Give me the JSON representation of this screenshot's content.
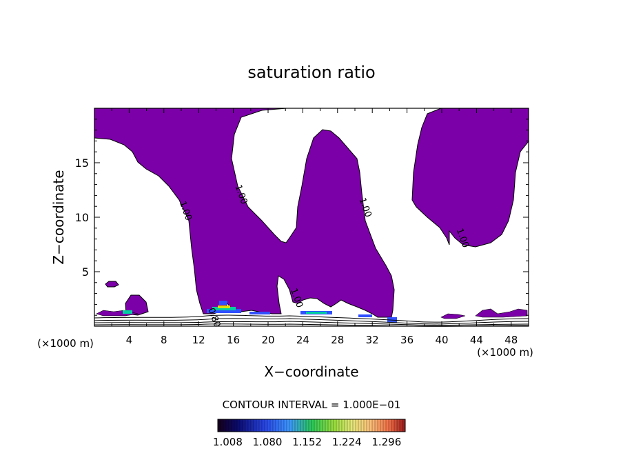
{
  "chart_data": {
    "type": "contour",
    "title": "saturation ratio",
    "xlabel": "X−coordinate",
    "ylabel": "Z−coordinate",
    "x_unit": "(×1000 m)",
    "z_unit": "(×1000 m)",
    "xlim": [
      0,
      50
    ],
    "ylim": [
      0,
      20
    ],
    "x_ticks": [
      4,
      8,
      12,
      16,
      20,
      24,
      28,
      32,
      36,
      40,
      44,
      48
    ],
    "y_ticks": [
      5,
      10,
      15
    ],
    "contour_labels": [
      {
        "text": "1.00",
        "x": 10.2,
        "z": 10.5
      },
      {
        "text": "1.00",
        "x": 16.6,
        "z": 12.0
      },
      {
        "text": "1.00",
        "x": 30.9,
        "z": 10.8
      },
      {
        "text": "1.00",
        "x": 42.1,
        "z": 8.0
      },
      {
        "text": "1.00",
        "x": 23.0,
        "z": 2.5
      },
      {
        "text": "0.80",
        "x": 13.5,
        "z": 0.7
      }
    ],
    "contour_interval_text": "CONTOUR INTERVAL = 1.000E−01",
    "colorbar": {
      "tick_labels": [
        "1.008",
        "1.080",
        "1.152",
        "1.224",
        "1.296"
      ],
      "min": 0.99,
      "max": 1.33
    },
    "fill_color": "#7b00a8",
    "note_colors": {
      "peak": "#e0e000",
      "mid": "#00d0a0",
      "low": "#3050ff"
    }
  }
}
